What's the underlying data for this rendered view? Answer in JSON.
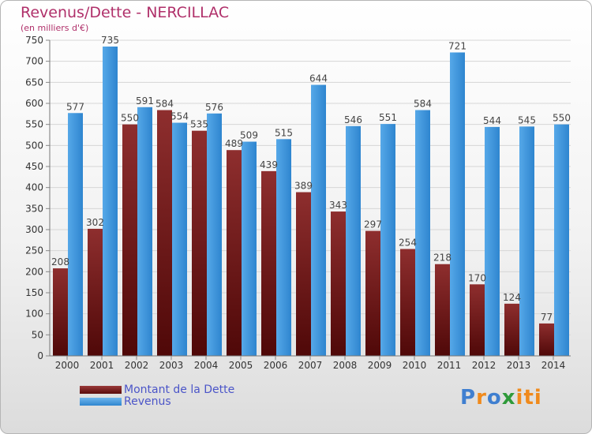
{
  "header": {
    "title": "Revenus/Dette - NERCILLAC",
    "subtitle": "(en milliers d'€)"
  },
  "legend": {
    "items": [
      "Montant de la Dette",
      "Revenus"
    ]
  },
  "logo": {
    "text": "Proxiti",
    "icon": "proxiti-logo"
  },
  "colors": {
    "dette": "#7a1d1d",
    "revenus": "#3f9be0",
    "title": "#b0306a",
    "legend_text": "#4b55c8"
  },
  "chart_data": {
    "type": "bar",
    "title": "Revenus/Dette - NERCILLAC",
    "subtitle": "(en milliers d'€)",
    "xlabel": "",
    "ylabel": "",
    "ylim": [
      0,
      750
    ],
    "yticks": [
      0,
      50,
      100,
      150,
      200,
      250,
      300,
      350,
      400,
      450,
      500,
      550,
      600,
      650,
      700,
      750
    ],
    "grid": true,
    "legend_position": "bottom-left",
    "categories": [
      "2000",
      "2001",
      "2002",
      "2003",
      "2004",
      "2005",
      "2006",
      "2007",
      "2008",
      "2009",
      "2010",
      "2011",
      "2012",
      "2013",
      "2014"
    ],
    "series": [
      {
        "name": "Montant de la Dette",
        "values": [
          208,
          302,
          550,
          584,
          535,
          489,
          439,
          389,
          343,
          297,
          254,
          218,
          170,
          124,
          77
        ]
      },
      {
        "name": "Revenus",
        "values": [
          577,
          735,
          591,
          554,
          576,
          509,
          515,
          644,
          546,
          551,
          584,
          721,
          544,
          545,
          550
        ]
      }
    ]
  }
}
